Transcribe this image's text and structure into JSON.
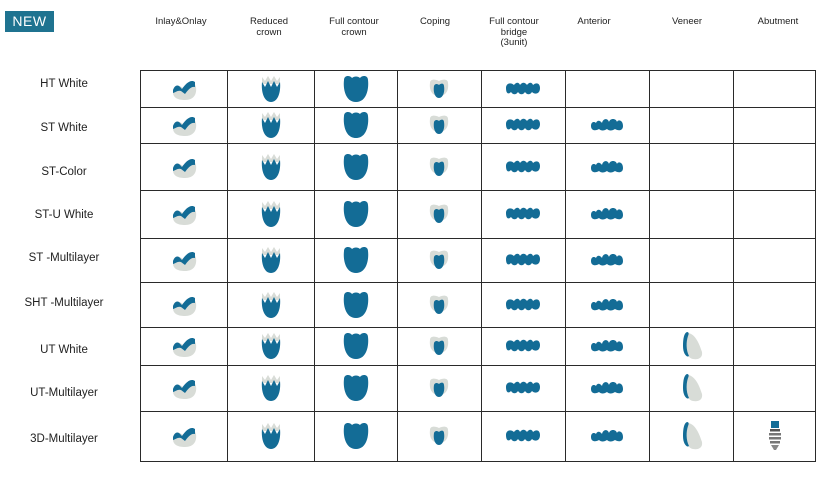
{
  "badge": "NEW",
  "columns": [
    "Inlay&Onlay",
    "Reduced\ncrown",
    "Full contour\ncrown",
    "Coping",
    "Full contour\nbridge\n(3unit)",
    "Anterior",
    "Veneer",
    "Abutment"
  ],
  "rows": [
    {
      "label": "HT White",
      "available": [
        "inlay-onlay-icon",
        "reduced-crown-icon",
        "full-crown-icon",
        "coping-icon",
        "bridge-icon"
      ]
    },
    {
      "label": "ST White",
      "available": [
        "inlay-onlay-icon",
        "reduced-crown-icon",
        "full-crown-icon",
        "coping-icon",
        "bridge-icon",
        "anterior-icon"
      ]
    },
    {
      "label": "ST-Color",
      "available": [
        "inlay-onlay-icon",
        "reduced-crown-icon",
        "full-crown-icon",
        "coping-icon",
        "bridge-icon",
        "anterior-icon"
      ]
    },
    {
      "label": "ST-U White",
      "available": [
        "inlay-onlay-icon",
        "reduced-crown-icon",
        "full-crown-icon",
        "coping-icon",
        "bridge-icon",
        "anterior-icon"
      ]
    },
    {
      "label": "ST -Multilayer",
      "available": [
        "inlay-onlay-icon",
        "reduced-crown-icon",
        "full-crown-icon",
        "coping-icon",
        "bridge-icon",
        "anterior-icon"
      ]
    },
    {
      "label": "SHT -Multilayer",
      "available": [
        "inlay-onlay-icon",
        "reduced-crown-icon",
        "full-crown-icon",
        "coping-icon",
        "bridge-icon",
        "anterior-icon"
      ]
    },
    {
      "label": "UT White",
      "available": [
        "inlay-onlay-icon",
        "reduced-crown-icon",
        "full-crown-icon",
        "coping-icon",
        "bridge-icon",
        "anterior-icon",
        "veneer-icon"
      ]
    },
    {
      "label": "UT-Multilayer",
      "available": [
        "inlay-onlay-icon",
        "reduced-crown-icon",
        "full-crown-icon",
        "coping-icon",
        "bridge-icon",
        "anterior-icon",
        "veneer-icon"
      ]
    },
    {
      "label": "3D-Multilayer",
      "available": [
        "inlay-onlay-icon",
        "reduced-crown-icon",
        "full-crown-icon",
        "coping-icon",
        "bridge-icon",
        "anterior-icon",
        "veneer-icon",
        "abutment-icon"
      ]
    }
  ],
  "colors": {
    "badge": "#1f7390",
    "tooth_blue": "#136c96",
    "tooth_grey": "#d8dcd7",
    "grid": "#2a2a2a"
  }
}
